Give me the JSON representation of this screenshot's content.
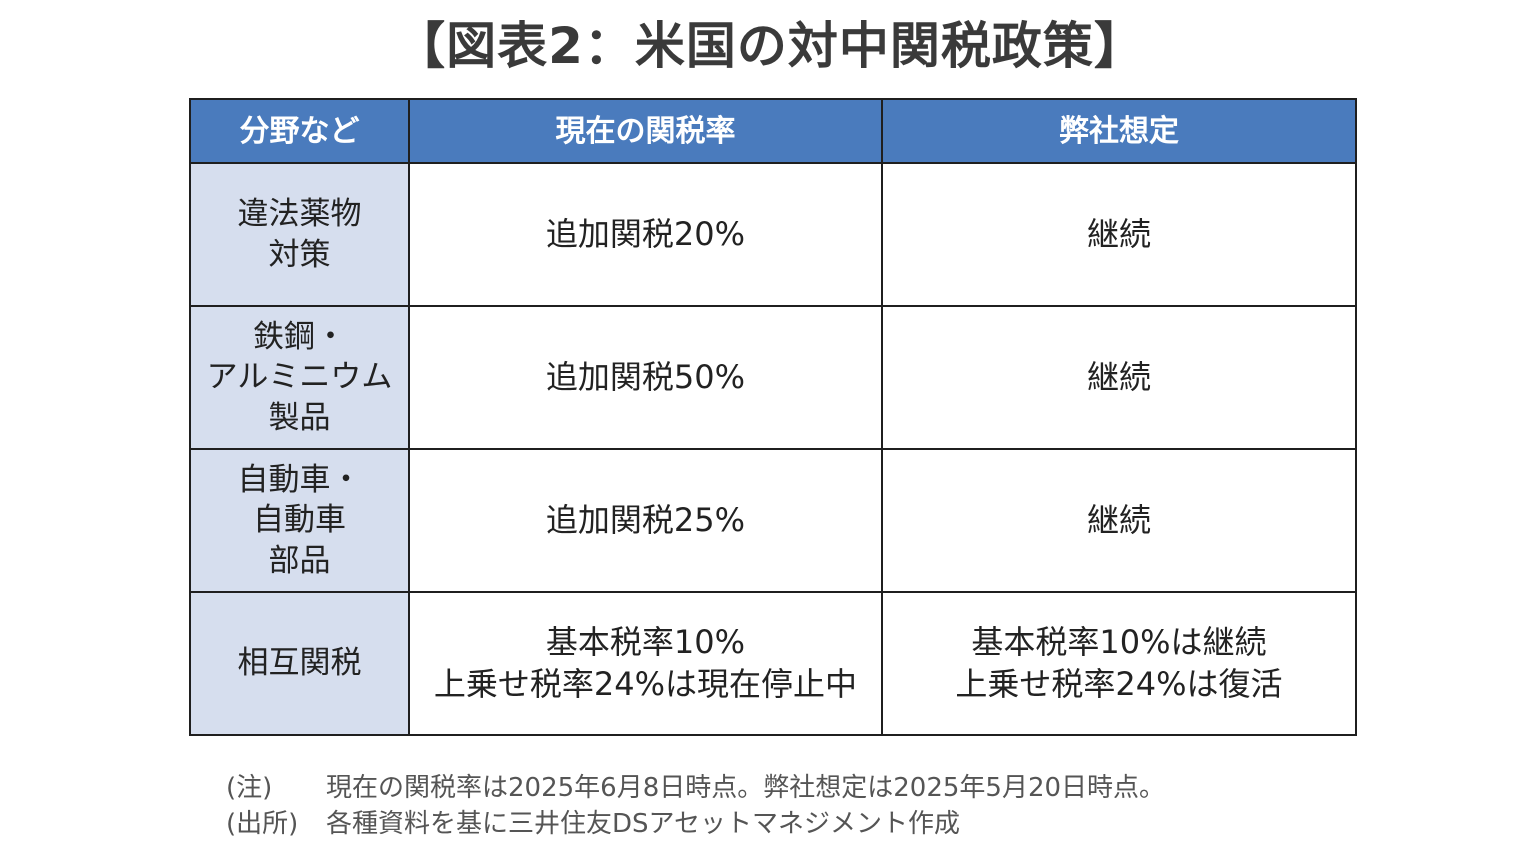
{
  "title": "【図表2：米国の対中関税政策】",
  "table": {
    "headers": [
      "分野など",
      "現在の関税率",
      "弊社想定"
    ],
    "rows": [
      {
        "category": "違法薬物\n対策",
        "current_rate": "追加関税20%",
        "outlook": "継続"
      },
      {
        "category": "鉄鋼・\nアルミニウム\n製品",
        "current_rate": "追加関税50%",
        "outlook": "継続"
      },
      {
        "category": "自動車・\n自動車\n部品",
        "current_rate": "追加関税25%",
        "outlook": "継続"
      },
      {
        "category": "相互関税",
        "current_rate": "基本税率10%\n上乗せ税率24%は現在停止中",
        "outlook": "基本税率10%は継続\n上乗せ税率24%は復活"
      }
    ]
  },
  "notes": [
    {
      "label": "(注)",
      "text": "現在の関税率は2025年6月8日時点。弊社想定は2025年5月20日時点。"
    },
    {
      "label": "(出所)",
      "text": "各種資料を基に三井住友DSアセットマネジメント作成"
    }
  ],
  "colors": {
    "header_bg": "#4a7bbd",
    "category_bg": "#d6deee",
    "border": "#1f1f1f"
  }
}
